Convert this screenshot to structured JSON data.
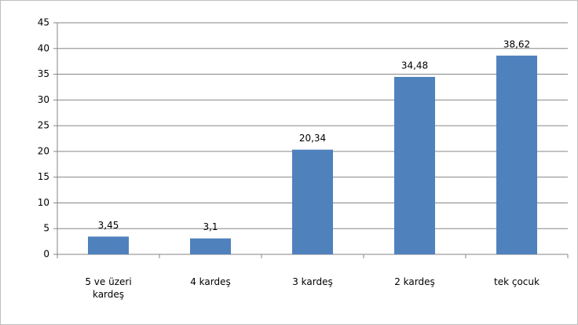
{
  "chart_data": {
    "type": "bar",
    "categories": [
      "5 ve üzeri kardeş",
      "4 kardeş",
      "3 kardeş",
      "2 kardeş",
      "tek çocuk"
    ],
    "values": [
      3.45,
      3.1,
      20.34,
      34.48,
      38.62
    ],
    "value_labels": [
      "3,45",
      "3,1",
      "20,34",
      "34,48",
      "38,62"
    ],
    "color": "#4f81bd",
    "ylim": [
      0,
      45
    ],
    "yticks": [
      0,
      5,
      10,
      15,
      20,
      25,
      30,
      35,
      40,
      45
    ],
    "grid": true
  }
}
